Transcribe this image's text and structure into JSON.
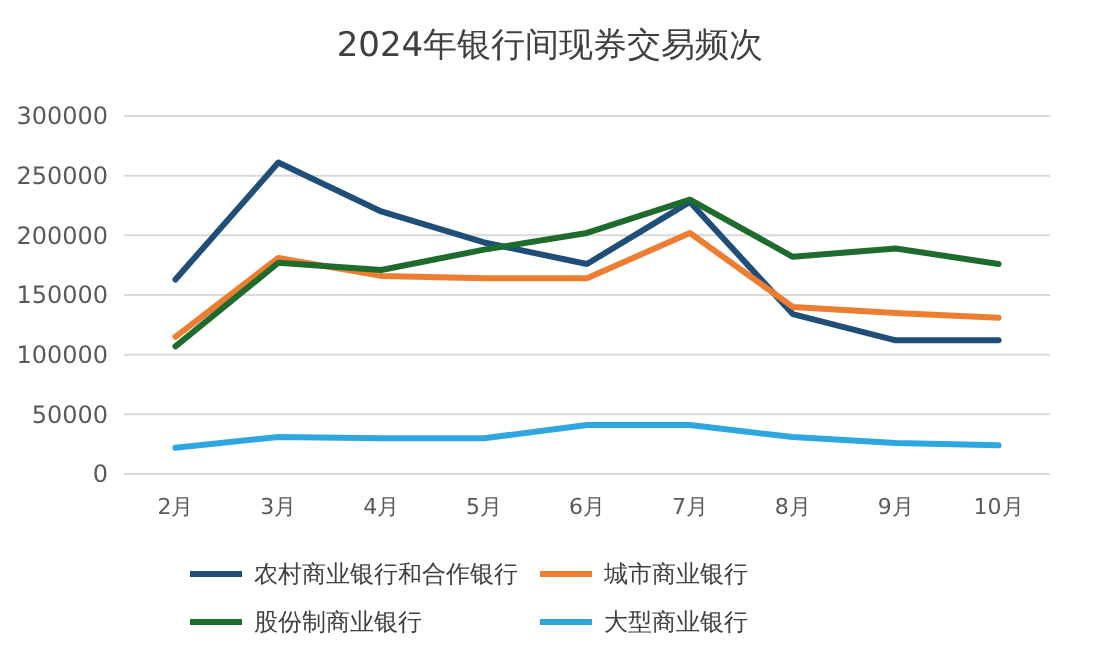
{
  "chart_data": {
    "type": "line",
    "title": "2024年银行间现券交易频次",
    "categories": [
      "2月",
      "3月",
      "4月",
      "5月",
      "6月",
      "7月",
      "8月",
      "9月",
      "10月"
    ],
    "series": [
      {
        "name": "农村商业银行和合作银行",
        "color": "#1f4e79",
        "values": [
          163000,
          261000,
          220000,
          194000,
          176000,
          228000,
          134000,
          112000,
          112000
        ]
      },
      {
        "name": "城市商业银行",
        "color": "#ed7d31",
        "values": [
          115000,
          181000,
          166000,
          164000,
          164000,
          202000,
          140000,
          135000,
          131000
        ]
      },
      {
        "name": "股份制商业银行",
        "color": "#1e6b2e",
        "values": [
          107000,
          177000,
          171000,
          188000,
          202000,
          230000,
          182000,
          189000,
          176000
        ]
      },
      {
        "name": "大型商业银行",
        "color": "#2ea7e0",
        "values": [
          22000,
          31000,
          30000,
          30000,
          41000,
          41000,
          31000,
          26000,
          24000
        ]
      }
    ],
    "ylim": [
      0,
      300000
    ],
    "yticks": [
      0,
      50000,
      100000,
      150000,
      200000,
      250000,
      300000
    ],
    "grid": "y",
    "legend": "bottom",
    "marker": "none",
    "line_style": "solid"
  }
}
